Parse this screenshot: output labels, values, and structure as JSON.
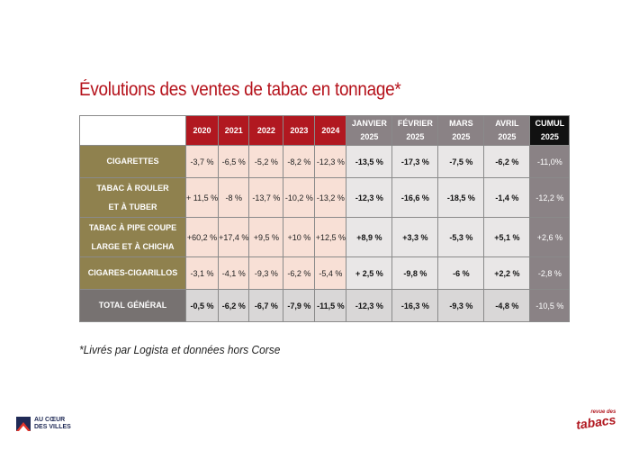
{
  "title": "Évolutions des ventes de tabac en tonnage*",
  "footnote": "*Livrés par Logista et données hors Corse",
  "columns": {
    "years": [
      "2020",
      "2021",
      "2022",
      "2023",
      "2024"
    ],
    "months": [
      {
        "line1": "JANVIER",
        "line2": "2025"
      },
      {
        "line1": "FÉVRIER",
        "line2": "2025"
      },
      {
        "line1": "MARS",
        "line2": "2025"
      },
      {
        "line1": "AVRIL",
        "line2": "2025"
      }
    ],
    "cumul": {
      "line1": "CUMUL",
      "line2": "2025"
    }
  },
  "rows": [
    {
      "line1": "CIGARETTES",
      "line2": "",
      "years": [
        "-3,7 %",
        "-6,5 %",
        "-5,2 %",
        "-8,2 %",
        "-12,3 %"
      ],
      "months": [
        "-13,5 %",
        "-17,3 %",
        "-7,5 %",
        "-6,2 %"
      ],
      "cumul": "-11,0%"
    },
    {
      "line1": "TABAC À ROULER",
      "line2": "ET À TUBER",
      "years": [
        "+ 11,5 %",
        "-8 %",
        "-13,7 %",
        "-10,2 %",
        "-13,2 %"
      ],
      "months": [
        "-12,3 %",
        "-16,6 %",
        "-18,5 %",
        "-1,4 %"
      ],
      "cumul": "-12,2 %"
    },
    {
      "line1": "TABAC À PIPE COUPE",
      "line2": "LARGE ET À CHICHA",
      "years": [
        "+60,2 %",
        "+17,4 %",
        "+9,5 %",
        "+10 %",
        "+12,5 %"
      ],
      "months": [
        "+8,9 %",
        "+3,3 %",
        "-5,3 %",
        "+5,1 %"
      ],
      "cumul": "+2,6 %"
    },
    {
      "line1": "CIGARES-CIGARILLOS",
      "line2": "",
      "years": [
        "-3,1 %",
        "-4,1 %",
        "-9,3 %",
        "-6,2 %",
        "-5,4 %"
      ],
      "months": [
        "+ 2,5 %",
        "-9,8 %",
        "-6 %",
        "+2,2 %"
      ],
      "cumul": "-2,8 %"
    }
  ],
  "total": {
    "line1": "TOTAL GÉNÉRAL",
    "years": [
      "-0,5 %",
      "-6,2 %",
      "-6,7 %",
      "-7,9 %",
      "-11,5 %"
    ],
    "months": [
      "-12,3 %",
      "-16,3 %",
      "-9,3 %",
      "-4,8 %"
    ],
    "cumul": "-10,5 %"
  },
  "logos": {
    "left_line1": "AU CŒUR",
    "left_line2": "DES VILLES",
    "right_small": "revue des",
    "right_big": "tabacs"
  },
  "colors": {
    "accent_red": "#b11820",
    "category_olive": "#8f814e",
    "month_grey": "#8a8285",
    "pink": "#f8e0d6"
  }
}
